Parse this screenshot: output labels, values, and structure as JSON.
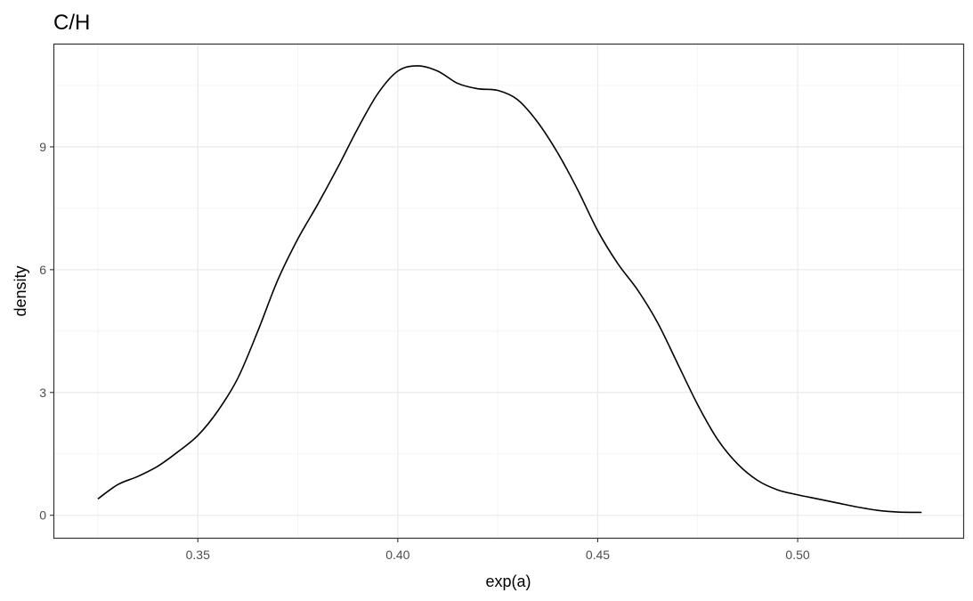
{
  "chart_data": {
    "type": "line",
    "title": "C/H",
    "xlabel": "exp(a)",
    "ylabel": "density",
    "xlim": [
      0.3141,
      0.5414
    ],
    "ylim": [
      -0.55,
      11.5
    ],
    "x_ticks": [
      0.35,
      0.4,
      0.45,
      0.5
    ],
    "x_tick_labels": [
      "0.35",
      "0.40",
      "0.45",
      "0.50"
    ],
    "y_ticks": [
      0,
      3,
      6,
      9
    ],
    "y_tick_labels": [
      "0",
      "3",
      "6",
      "9"
    ],
    "grid": true,
    "series": [
      {
        "color": "#000000",
        "x": [
          0.325,
          0.33,
          0.335,
          0.34,
          0.345,
          0.35,
          0.355,
          0.36,
          0.365,
          0.37,
          0.375,
          0.38,
          0.385,
          0.39,
          0.395,
          0.4,
          0.405,
          0.41,
          0.415,
          0.42,
          0.425,
          0.43,
          0.435,
          0.44,
          0.445,
          0.45,
          0.455,
          0.46,
          0.465,
          0.47,
          0.475,
          0.48,
          0.485,
          0.49,
          0.495,
          0.5,
          0.505,
          0.51,
          0.515,
          0.52,
          0.525,
          0.531
        ],
        "y": [
          0.4,
          0.75,
          0.95,
          1.2,
          1.55,
          1.95,
          2.55,
          3.35,
          4.5,
          5.75,
          6.75,
          7.6,
          8.5,
          9.45,
          10.3,
          10.85,
          10.98,
          10.85,
          10.55,
          10.42,
          10.38,
          10.15,
          9.6,
          8.85,
          7.95,
          6.95,
          6.15,
          5.5,
          4.7,
          3.7,
          2.7,
          1.85,
          1.25,
          0.85,
          0.62,
          0.5,
          0.4,
          0.3,
          0.2,
          0.12,
          0.08,
          0.07
        ]
      }
    ]
  }
}
